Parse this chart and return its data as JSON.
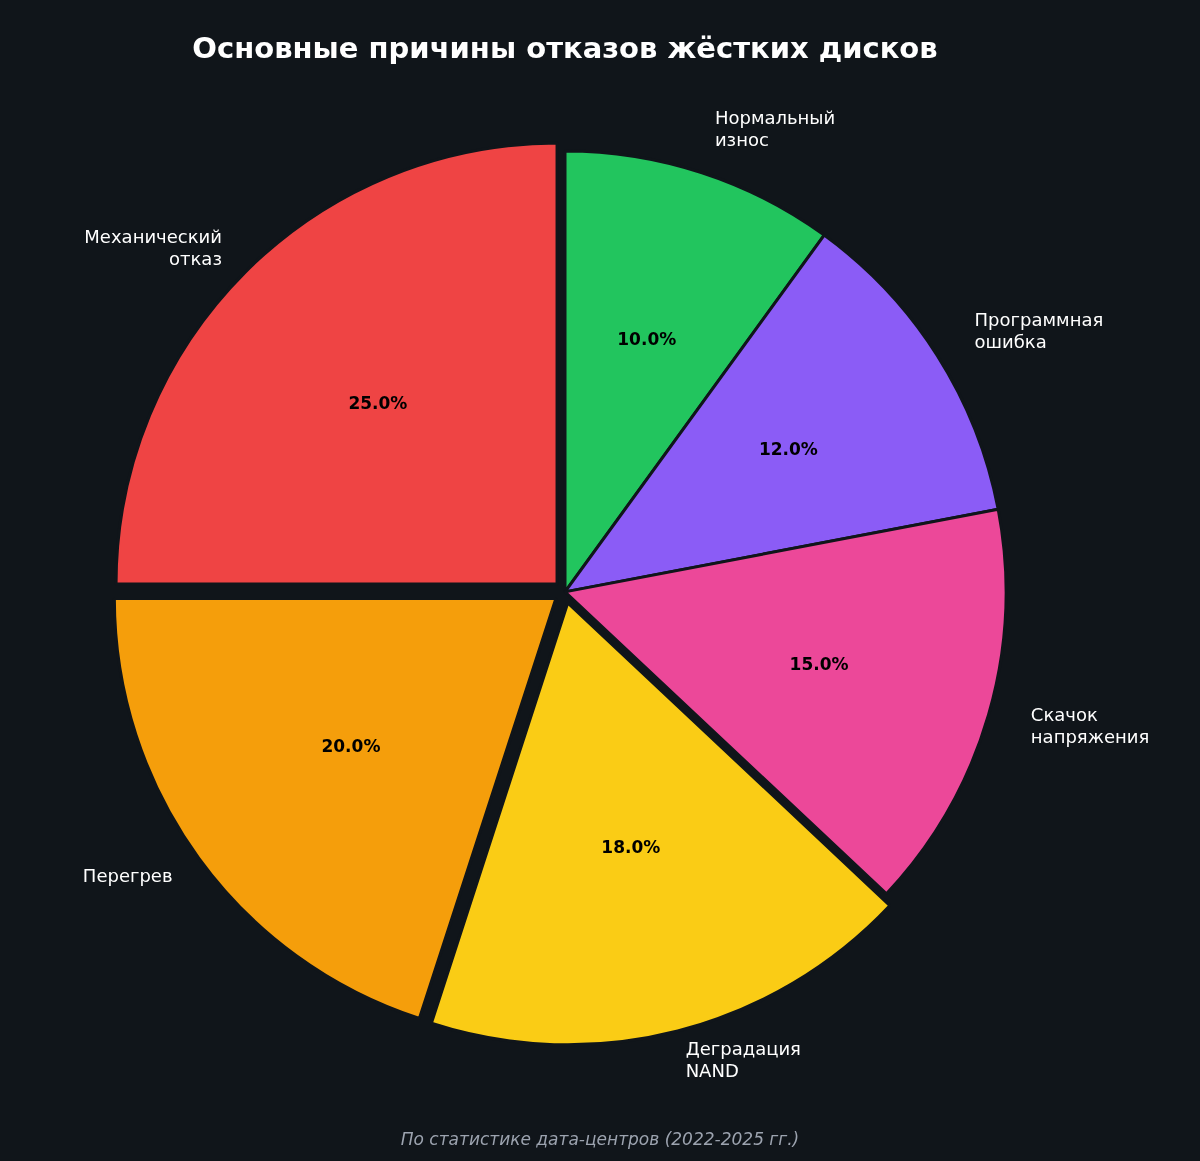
{
  "chart_data": {
    "type": "pie",
    "title": "Основные причины отказов жёстких дисков",
    "categories": [
      "Нормальный износ",
      "Программная ошибка",
      "Скачок напряжения",
      "Деградация NAND",
      "Перегрев",
      "Механический отказ"
    ],
    "values": [
      10,
      12,
      15,
      18,
      20,
      25
    ],
    "value_labels": [
      "10.0%",
      "12.0%",
      "15.0%",
      "18.0%",
      "20.0%",
      "25.0%"
    ],
    "colors": [
      "#22c55e",
      "#8b5cf6",
      "#ec4899",
      "#facc15",
      "#f59e0b",
      "#ef4444"
    ],
    "legend": false,
    "annotations": [
      "По статистике дата-центров (2022-2025 гг.)"
    ]
  }
}
